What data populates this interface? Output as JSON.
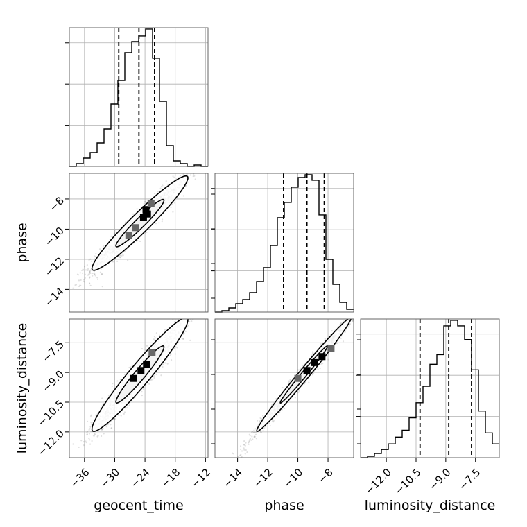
{
  "chart_data": {
    "type": "corner",
    "parameters": [
      "geocent_time",
      "phase",
      "luminosity_distance"
    ],
    "axis_labels": {
      "x": [
        "geocent_time",
        "phase",
        "luminosity_distance"
      ],
      "y": [
        "phase",
        "luminosity_distance"
      ]
    },
    "ranges": {
      "geocent_time": [
        -39.0,
        -11.5
      ],
      "phase": [
        -15.5,
        -6.3
      ],
      "luminosity_distance": [
        -13.3,
        -6.3
      ]
    },
    "ticks": {
      "geocent_time": [
        -36,
        -30,
        -24,
        -18,
        -12
      ],
      "phase": [
        -14,
        -12,
        -10,
        -8
      ],
      "luminosity_distance": [
        -12.0,
        -10.5,
        -9.0,
        -7.5
      ]
    },
    "tick_labels": {
      "geocent_time": [
        "−36",
        "−30",
        "−24",
        "−18",
        "−12"
      ],
      "phase": [
        "−14",
        "−12",
        "−10",
        "−8"
      ],
      "luminosity_distance": [
        "−12.0",
        "−10.5",
        "−9.0",
        "−7.5"
      ]
    },
    "histograms": [
      {
        "parameter": "geocent_time",
        "bins": [
          -39.0,
          -37.625,
          -36.25,
          -34.875,
          -33.5,
          -32.125,
          -30.75,
          -29.375,
          -28.0,
          -26.625,
          -25.25,
          -23.875,
          -22.5,
          -21.125,
          -19.75,
          -18.375,
          -17.0,
          -15.625,
          -14.25,
          -12.875,
          -11.5
        ],
        "counts": [
          0,
          2,
          6,
          10,
          17,
          27,
          45,
          62,
          82,
          90,
          94,
          99,
          78,
          47,
          15,
          4,
          2,
          0,
          1,
          0
        ],
        "quantiles": [
          -29.2,
          -25.2,
          -22.1
        ]
      },
      {
        "parameter": "phase",
        "bins": [
          -15.5,
          -15.04,
          -14.58,
          -14.12,
          -13.66,
          -13.2,
          -12.74,
          -12.28,
          -11.82,
          -11.36,
          -10.9,
          -10.44,
          -9.98,
          -9.52,
          -9.06,
          -8.6,
          -8.14,
          -7.68,
          -7.22,
          -6.76,
          -6.3
        ],
        "counts": [
          0,
          1,
          3,
          6,
          9,
          14,
          22,
          32,
          48,
          68,
          79,
          90,
          97,
          99,
          95,
          70,
          38,
          20,
          7,
          2
        ],
        "quantiles": [
          -10.95,
          -9.4,
          -8.25
        ]
      },
      {
        "parameter": "luminosity_distance",
        "bins": [
          -13.3,
          -12.95,
          -12.6,
          -12.25,
          -11.9,
          -11.55,
          -11.2,
          -10.85,
          -10.5,
          -10.15,
          -9.8,
          -9.45,
          -9.1,
          -8.75,
          -8.4,
          -8.05,
          -7.7,
          -7.35,
          -7.0,
          -6.65,
          -6.3
        ],
        "counts": [
          0,
          1,
          3,
          6,
          10,
          15,
          20,
          29,
          40,
          52,
          68,
          75,
          96,
          100,
          96,
          86,
          64,
          34,
          18,
          10
        ],
        "quantiles": [
          -10.3,
          -8.85,
          -7.7
        ]
      }
    ],
    "scatter_panels": [
      {
        "x": "geocent_time",
        "y": "phase",
        "mean": [
          -25.0,
          -9.6
        ],
        "sd": [
          4.8,
          1.58
        ],
        "rho": 0.96,
        "density_peaks": [
          [
            -24.3,
            -9.2
          ],
          [
            -23.8,
            -8.7
          ],
          [
            -23.5,
            -9.0
          ],
          [
            -22.8,
            -8.3
          ],
          [
            -25.8,
            -9.9
          ],
          [
            -27.2,
            -10.4
          ]
        ]
      },
      {
        "x": "geocent_time",
        "y": "luminosity_distance",
        "mean": [
          -25.0,
          -9.1
        ],
        "sd": [
          4.8,
          1.45
        ],
        "rho": 0.96,
        "density_peaks": [
          [
            -24.8,
            -8.9
          ],
          [
            -23.7,
            -8.6
          ],
          [
            -26.3,
            -9.3
          ],
          [
            -22.6,
            -8.0
          ]
        ]
      },
      {
        "x": "phase",
        "y": "luminosity_distance",
        "mean": [
          -9.6,
          -9.1
        ],
        "sd": [
          1.58,
          1.45
        ],
        "rho": 0.99,
        "density_peaks": [
          [
            -9.4,
            -8.9
          ],
          [
            -8.9,
            -8.5
          ],
          [
            -8.4,
            -8.2
          ],
          [
            -7.8,
            -7.8
          ],
          [
            -10.0,
            -9.3
          ]
        ]
      }
    ],
    "contour_levels": [
      0.39,
      0.86
    ],
    "grid": true
  }
}
